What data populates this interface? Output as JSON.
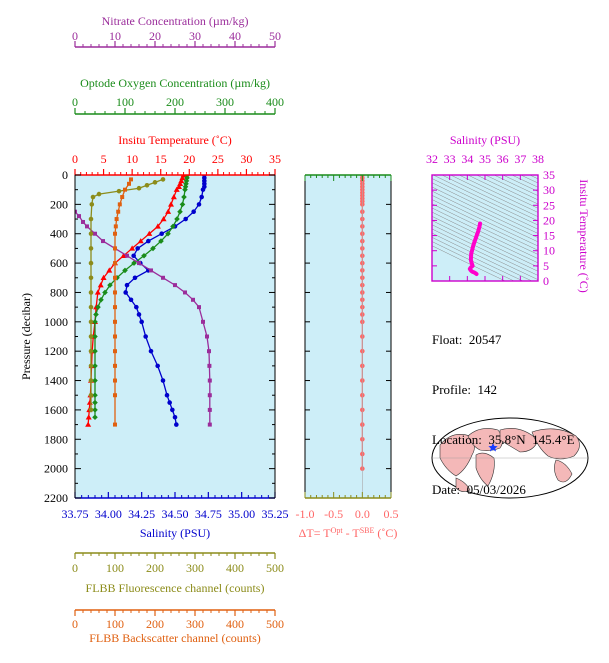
{
  "colors": {
    "nitrate": "#9b2d9b",
    "oxygen": "#1a8c1a",
    "temperature": "#ff0000",
    "salinity": "#0000cc",
    "fluorescence": "#8c8c1a",
    "backscatter": "#e06010",
    "delta_t": "#ff6666",
    "plot_bg": "#cdeef8",
    "ts_line": "#ff00cc",
    "ts_axis": "#cc00cc"
  },
  "info": {
    "float_label": "Float:",
    "float_value": "20547",
    "profile_label": "Profile:",
    "profile_value": "142",
    "location_label": "Location:",
    "location_value": "35.8°N  145.4°E",
    "date_label": "Date:",
    "date_value": "05/03/2026"
  },
  "chart_data": [
    {
      "type": "line",
      "title": "",
      "ylabel": "Pressure (decibar)",
      "ylim": [
        2200,
        0
      ],
      "yticks": [
        "0",
        "200",
        "400",
        "600",
        "800",
        "1000",
        "1200",
        "1400",
        "1600",
        "1800",
        "2000",
        "2200"
      ],
      "axes": {
        "nitrate": {
          "label": "Nitrate Concentration (µm/kg)",
          "range": [
            0,
            50
          ],
          "ticks": [
            "0",
            "10",
            "20",
            "30",
            "40",
            "50"
          ]
        },
        "oxygen": {
          "label": "Optode Oxygen Concentration (µm/kg)",
          "range": [
            0,
            400
          ],
          "ticks": [
            "0",
            "100",
            "200",
            "300",
            "400"
          ]
        },
        "temperature": {
          "label": "Insitu Temperature (˚C)",
          "range": [
            0,
            35
          ],
          "ticks": [
            "0",
            "5",
            "10",
            "15",
            "20",
            "25",
            "30",
            "35"
          ]
        },
        "salinity": {
          "label": "Salinity (PSU)",
          "range": [
            33.75,
            35.25
          ],
          "ticks": [
            "33.75",
            "34.00",
            "34.25",
            "34.50",
            "34.75",
            "35.00",
            "35.25"
          ]
        },
        "fluorescence": {
          "label": "FLBB Fluorescence channel (counts)",
          "range": [
            0,
            500
          ],
          "ticks": [
            "0",
            "100",
            "200",
            "300",
            "400",
            "500"
          ]
        },
        "backscatter": {
          "label": "FLBB Backscatter channel (counts)",
          "range": [
            0,
            500
          ],
          "ticks": [
            "0",
            "100",
            "200",
            "300",
            "400",
            "500"
          ]
        }
      },
      "series": [
        {
          "key": "temperature",
          "marker": "triangle",
          "x": [
            19,
            18.8,
            18.6,
            18.4,
            18.2,
            17.8,
            17.3,
            16.8,
            16.3,
            15.5,
            14.5,
            13,
            11.5,
            10,
            8.5,
            7,
            6,
            5,
            4.5,
            4,
            3.7,
            3.5,
            3.2,
            3,
            2.9,
            2.8,
            2.7,
            2.6,
            2.5,
            2.4,
            2.3
          ],
          "y": [
            0,
            20,
            40,
            60,
            80,
            100,
            150,
            200,
            250,
            300,
            350,
            400,
            450,
            500,
            550,
            600,
            650,
            700,
            750,
            800,
            900,
            1000,
            1100,
            1200,
            1300,
            1400,
            1500,
            1550,
            1600,
            1650,
            1700
          ]
        },
        {
          "key": "salinity",
          "marker": "circle",
          "x": [
            34.72,
            34.72,
            34.72,
            34.72,
            34.72,
            34.71,
            34.7,
            34.68,
            34.64,
            34.58,
            34.5,
            34.4,
            34.3,
            34.22,
            34.19,
            34.24,
            34.3,
            34.2,
            34.14,
            34.13,
            34.17,
            34.21,
            34.23,
            34.25,
            34.28,
            34.32,
            34.37,
            34.41,
            34.44,
            34.46,
            34.48,
            34.5,
            34.51
          ],
          "y": [
            0,
            20,
            40,
            60,
            80,
            100,
            150,
            200,
            250,
            300,
            350,
            400,
            450,
            500,
            550,
            600,
            650,
            700,
            750,
            800,
            850,
            900,
            950,
            1000,
            1100,
            1200,
            1300,
            1400,
            1500,
            1550,
            1600,
            1650,
            1700
          ]
        },
        {
          "key": "oxygen",
          "marker": "diamond",
          "x": [
            225,
            224,
            223,
            222,
            221,
            220,
            218,
            215,
            210,
            204,
            196,
            186,
            172,
            156,
            138,
            118,
            100,
            84,
            70,
            60,
            52,
            46,
            42,
            40,
            40,
            40,
            40,
            40,
            40,
            40,
            40,
            40
          ],
          "y": [
            0,
            20,
            40,
            60,
            80,
            100,
            150,
            200,
            250,
            300,
            350,
            400,
            450,
            500,
            550,
            600,
            650,
            700,
            750,
            800,
            850,
            900,
            950,
            1000,
            1100,
            1200,
            1300,
            1400,
            1500,
            1550,
            1600,
            1650
          ]
        },
        {
          "key": "nitrate",
          "marker": "square",
          "x": [
            0,
            1,
            2,
            3,
            5,
            7,
            10,
            13,
            16,
            19,
            22,
            25,
            27.5,
            29.5,
            31,
            32,
            33,
            33.5,
            33.6,
            33.7,
            33.7,
            33.7,
            33.7
          ],
          "y": [
            250,
            280,
            320,
            350,
            400,
            450,
            500,
            550,
            600,
            650,
            700,
            750,
            800,
            850,
            900,
            1000,
            1100,
            1200,
            1300,
            1400,
            1500,
            1600,
            1700
          ]
        },
        {
          "key": "fluorescence",
          "marker": "circle",
          "x": [
            220,
            200,
            180,
            160,
            110,
            60,
            45,
            42,
            40,
            40,
            40,
            40,
            40,
            40,
            40,
            40,
            40,
            40,
            40,
            40,
            40,
            40
          ],
          "y": [
            30,
            50,
            70,
            90,
            110,
            130,
            150,
            200,
            300,
            400,
            500,
            600,
            700,
            800,
            900,
            1000,
            1100,
            1200,
            1300,
            1400,
            1500,
            1600
          ]
        },
        {
          "key": "backscatter",
          "marker": "square",
          "x": [
            140,
            135,
            125,
            118,
            112,
            108,
            104,
            102,
            100,
            100,
            100,
            100,
            100,
            100,
            100,
            100,
            100,
            100,
            100,
            100,
            100
          ],
          "y": [
            30,
            60,
            100,
            150,
            200,
            250,
            300,
            350,
            400,
            500,
            600,
            700,
            800,
            900,
            1000,
            1100,
            1200,
            1300,
            1400,
            1500,
            1700
          ]
        }
      ]
    },
    {
      "type": "line",
      "xlabel": "ΔT= T^Opt - T^SBE (˚C)",
      "xlim": [
        -1.0,
        0.5
      ],
      "xticks": [
        "-1.0",
        "-0.5",
        "0.0",
        "0.5"
      ],
      "series": [
        {
          "key": "delta_t",
          "marker": "circle",
          "x": [
            0,
            0,
            0,
            0,
            0,
            0,
            0,
            0,
            0,
            0,
            0,
            0,
            0,
            0,
            0,
            0,
            0,
            0,
            0,
            0,
            0,
            0,
            0,
            0,
            0,
            0,
            0,
            0,
            0,
            0,
            0,
            0,
            0,
            0,
            0,
            0,
            0
          ],
          "y": [
            0,
            20,
            40,
            60,
            80,
            100,
            120,
            140,
            160,
            180,
            200,
            250,
            300,
            350,
            400,
            450,
            500,
            550,
            600,
            650,
            700,
            750,
            800,
            850,
            900,
            950,
            1000,
            1100,
            1200,
            1300,
            1400,
            1500,
            1600,
            1700,
            1800,
            1900,
            2000
          ]
        }
      ]
    },
    {
      "type": "line",
      "xlabel": "Salinity (PSU)",
      "ylabel": "Insitu Temperature (˚C)",
      "xlim": [
        32,
        38
      ],
      "ylim": [
        0,
        35
      ],
      "xticks": [
        "32",
        "33",
        "34",
        "35",
        "36",
        "37",
        "38"
      ],
      "yticks": [
        "0",
        "5",
        "10",
        "15",
        "20",
        "25",
        "30",
        "35"
      ],
      "series": [
        {
          "key": "ts",
          "marker": "none",
          "x": [
            34.72,
            34.71,
            34.68,
            34.62,
            34.5,
            34.35,
            34.22,
            34.2,
            34.24,
            34.3,
            34.2,
            34.14,
            34.17,
            34.23,
            34.3,
            34.4,
            34.48,
            34.52
          ],
          "y": [
            19,
            18.6,
            17.8,
            16.5,
            14.5,
            12,
            9,
            7,
            6,
            5,
            4.5,
            4,
            3.7,
            3.3,
            3,
            2.8,
            2.5,
            2.3
          ]
        }
      ]
    }
  ]
}
